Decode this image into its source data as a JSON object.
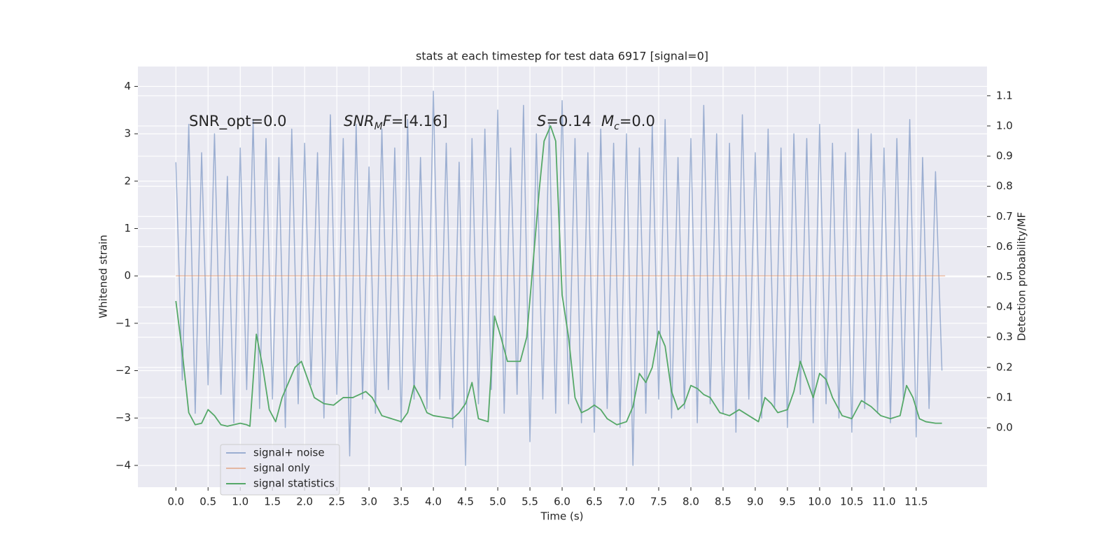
{
  "chart_data": {
    "type": "line",
    "title": "stats at each timestep for test data 6917 [signal=0]",
    "xlabel": "Time (s)",
    "ylabel": "Whitened strain",
    "y2label": "Detection probability/MF",
    "xlim": [
      -0.59,
      12.6
    ],
    "ylim": [
      -4.46,
      4.42
    ],
    "y2lim": [
      -0.197,
      1.197
    ],
    "grid": true,
    "legend": "lower left",
    "xticks": [
      {
        "value": 0,
        "label": "0.0"
      },
      {
        "value": 0.5,
        "label": "0.5"
      },
      {
        "value": 1,
        "label": "1.0"
      },
      {
        "value": 1.5,
        "label": "1.5"
      },
      {
        "value": 2,
        "label": "2.0"
      },
      {
        "value": 2.5,
        "label": "2.5"
      },
      {
        "value": 3,
        "label": "3.0"
      },
      {
        "value": 3.5,
        "label": "3.5"
      },
      {
        "value": 4,
        "label": "4.0"
      },
      {
        "value": 4.5,
        "label": "4.5"
      },
      {
        "value": 5,
        "label": "5.0"
      },
      {
        "value": 5.5,
        "label": "5.5"
      },
      {
        "value": 6,
        "label": "6.0"
      },
      {
        "value": 6.5,
        "label": "6.5"
      },
      {
        "value": 7,
        "label": "7.0"
      },
      {
        "value": 7.5,
        "label": "7.5"
      },
      {
        "value": 8,
        "label": "8.0"
      },
      {
        "value": 8.5,
        "label": "8.5"
      },
      {
        "value": 9,
        "label": "9.0"
      },
      {
        "value": 9.5,
        "label": "9.5"
      },
      {
        "value": 10,
        "label": "10.0"
      },
      {
        "value": 10.5,
        "label": "10.5"
      },
      {
        "value": 11,
        "label": "11.0"
      },
      {
        "value": 11.5,
        "label": "11.5"
      }
    ],
    "yticks": [
      {
        "value": -4,
        "label": "−4"
      },
      {
        "value": -3,
        "label": "−3"
      },
      {
        "value": -2,
        "label": "−2"
      },
      {
        "value": -1,
        "label": "−1"
      },
      0,
      1,
      2,
      3,
      4
    ],
    "y2ticks": [
      {
        "value": 0,
        "label": "0.0"
      },
      {
        "value": 0.1,
        "label": "0.1"
      },
      {
        "value": 0.2,
        "label": "0.2"
      },
      {
        "value": 0.3,
        "label": "0.3"
      },
      {
        "value": 0.4,
        "label": "0.4"
      },
      {
        "value": 0.5,
        "label": "0.5"
      },
      {
        "value": 0.6,
        "label": "0.6"
      },
      {
        "value": 0.7,
        "label": "0.7"
      },
      {
        "value": 0.8,
        "label": "0.8"
      },
      {
        "value": 0.9,
        "label": "0.9"
      },
      {
        "value": 1,
        "label": "1.0"
      },
      {
        "value": 1.1,
        "label": "1.1"
      }
    ],
    "annotations": [
      {
        "parts": [
          {
            "text": "SNR_opt=0.0"
          }
        ]
      },
      {
        "parts": [
          {
            "text": "SNR",
            "italic": true
          },
          {
            "text": "M",
            "italic": true,
            "sub": true
          },
          {
            "text": "F",
            "italic": true
          },
          {
            "text": "=[4.16]"
          }
        ]
      },
      {
        "parts": [
          {
            "text": "S",
            "italic": true
          },
          {
            "text": "=0.14"
          }
        ]
      },
      {
        "parts": [
          {
            "text": "M",
            "italic": true
          },
          {
            "text": "c",
            "italic": true,
            "sub": true
          },
          {
            "text": "=0.0"
          }
        ]
      }
    ],
    "series": [
      {
        "name": "signal+ noise",
        "color": "#4c72b0",
        "opacity": 0.5,
        "x": [
          0,
          0.1,
          0.2,
          0.3,
          0.4,
          0.5,
          0.6,
          0.7,
          0.8,
          0.9,
          1,
          1.1,
          1.2,
          1.3,
          1.4,
          1.5,
          1.6,
          1.7,
          1.8,
          1.9,
          2,
          2.1,
          2.2,
          2.3,
          2.4,
          2.5,
          2.6,
          2.7,
          2.8,
          2.9,
          3,
          3.1,
          3.2,
          3.3,
          3.4,
          3.5,
          3.6,
          3.7,
          3.8,
          3.9,
          4,
          4.1,
          4.2,
          4.3,
          4.4,
          4.5,
          4.6,
          4.7,
          4.8,
          4.9,
          5,
          5.1,
          5.2,
          5.3,
          5.4,
          5.5,
          5.6,
          5.7,
          5.8,
          5.9,
          6,
          6.1,
          6.2,
          6.3,
          6.4,
          6.5,
          6.6,
          6.7,
          6.8,
          6.9,
          7,
          7.1,
          7.2,
          7.3,
          7.4,
          7.5,
          7.6,
          7.7,
          7.8,
          7.9,
          8,
          8.1,
          8.2,
          8.3,
          8.4,
          8.5,
          8.6,
          8.7,
          8.8,
          8.9,
          9,
          9.1,
          9.2,
          9.3,
          9.4,
          9.5,
          9.6,
          9.7,
          9.8,
          9.9,
          10,
          10.1,
          10.2,
          10.3,
          10.4,
          10.5,
          10.6,
          10.7,
          10.8,
          10.9,
          11,
          11.1,
          11.2,
          11.3,
          11.4,
          11.5,
          11.6,
          11.7,
          11.8,
          11.9
        ],
        "values": [
          2.4,
          -2.2,
          3.2,
          -2.9,
          2.6,
          -2.3,
          3.0,
          -2.5,
          2.1,
          -3.1,
          2.7,
          -2.4,
          3.3,
          -2.8,
          2.9,
          -2.6,
          2.5,
          -3.2,
          3.1,
          -2.7,
          2.8,
          -2.3,
          2.6,
          -3.0,
          3.4,
          -2.5,
          2.9,
          -3.8,
          3.2,
          -2.6,
          2.3,
          -2.9,
          3.1,
          -2.4,
          2.7,
          -3.1,
          3.3,
          -2.6,
          2.5,
          -2.8,
          3.9,
          -2.6,
          2.8,
          -3.2,
          2.4,
          -4.0,
          2.9,
          -2.7,
          3.1,
          -2.4,
          3.5,
          -2.9,
          2.7,
          -2.5,
          3.6,
          -3.5,
          3.0,
          -2.6,
          3.2,
          -2.9,
          3.7,
          -2.7,
          2.9,
          -3.1,
          2.6,
          -3.3,
          3.1,
          -2.8,
          2.8,
          -3.2,
          3.0,
          -4.0,
          2.7,
          -2.9,
          3.2,
          -2.6,
          3.3,
          -3.0,
          2.5,
          -2.8,
          2.9,
          -3.1,
          3.6,
          -2.7,
          3.0,
          -2.9,
          2.8,
          -3.3,
          3.4,
          -2.6,
          2.6,
          -3.0,
          3.1,
          -2.8,
          2.7,
          -3.2,
          3.0,
          -2.5,
          2.9,
          -3.1,
          3.2,
          -2.7,
          2.8,
          -3.0,
          2.6,
          -3.3,
          3.1,
          -2.8,
          3.0,
          -2.9,
          2.7,
          -3.1,
          2.9,
          -2.6,
          3.3,
          -3.4,
          2.5,
          -2.8,
          2.2,
          -2.0
        ]
      },
      {
        "name": "signal only",
        "color": "#dd8452",
        "opacity": 0.5,
        "x": [
          0,
          11.95
        ],
        "values": [
          0,
          0
        ]
      },
      {
        "name": "signal statistics",
        "color": "#55a868",
        "opacity": 1,
        "axis": "y2",
        "x": [
          0,
          0.1,
          0.2,
          0.3,
          0.4,
          0.5,
          0.6,
          0.7,
          0.8,
          0.9,
          1.0,
          1.1,
          1.15,
          1.25,
          1.35,
          1.45,
          1.55,
          1.65,
          1.75,
          1.85,
          1.95,
          2.05,
          2.15,
          2.3,
          2.45,
          2.6,
          2.75,
          2.85,
          2.95,
          3.05,
          3.2,
          3.35,
          3.5,
          3.6,
          3.7,
          3.8,
          3.9,
          4.0,
          4.15,
          4.3,
          4.4,
          4.5,
          4.6,
          4.7,
          4.85,
          4.95,
          5.05,
          5.15,
          5.25,
          5.35,
          5.45,
          5.55,
          5.65,
          5.72,
          5.82,
          5.9,
          6.0,
          6.1,
          6.2,
          6.3,
          6.4,
          6.5,
          6.6,
          6.7,
          6.85,
          7.0,
          7.1,
          7.2,
          7.3,
          7.4,
          7.5,
          7.6,
          7.7,
          7.8,
          7.9,
          8.0,
          8.1,
          8.2,
          8.3,
          8.45,
          8.6,
          8.75,
          8.9,
          9.05,
          9.15,
          9.25,
          9.35,
          9.5,
          9.6,
          9.7,
          9.8,
          9.9,
          10.0,
          10.1,
          10.2,
          10.35,
          10.5,
          10.65,
          10.8,
          10.95,
          11.1,
          11.25,
          11.35,
          11.45,
          11.55,
          11.65,
          11.8,
          11.9
        ],
        "values": [
          0.42,
          0.25,
          0.05,
          0.01,
          0.015,
          0.06,
          0.04,
          0.01,
          0.005,
          0.01,
          0.015,
          0.01,
          0.005,
          0.31,
          0.2,
          0.06,
          0.02,
          0.1,
          0.15,
          0.2,
          0.22,
          0.16,
          0.1,
          0.08,
          0.075,
          0.1,
          0.1,
          0.11,
          0.12,
          0.1,
          0.04,
          0.03,
          0.02,
          0.05,
          0.14,
          0.1,
          0.05,
          0.04,
          0.035,
          0.03,
          0.05,
          0.08,
          0.15,
          0.03,
          0.02,
          0.37,
          0.3,
          0.22,
          0.22,
          0.22,
          0.3,
          0.55,
          0.8,
          0.95,
          1.0,
          0.95,
          0.44,
          0.3,
          0.1,
          0.05,
          0.06,
          0.075,
          0.06,
          0.03,
          0.01,
          0.02,
          0.07,
          0.18,
          0.15,
          0.2,
          0.32,
          0.27,
          0.12,
          0.06,
          0.08,
          0.14,
          0.13,
          0.11,
          0.1,
          0.05,
          0.04,
          0.06,
          0.04,
          0.02,
          0.1,
          0.08,
          0.05,
          0.06,
          0.12,
          0.22,
          0.16,
          0.1,
          0.18,
          0.16,
          0.1,
          0.04,
          0.03,
          0.09,
          0.07,
          0.04,
          0.03,
          0.04,
          0.14,
          0.1,
          0.03,
          0.02,
          0.015,
          0.015
        ]
      }
    ]
  }
}
